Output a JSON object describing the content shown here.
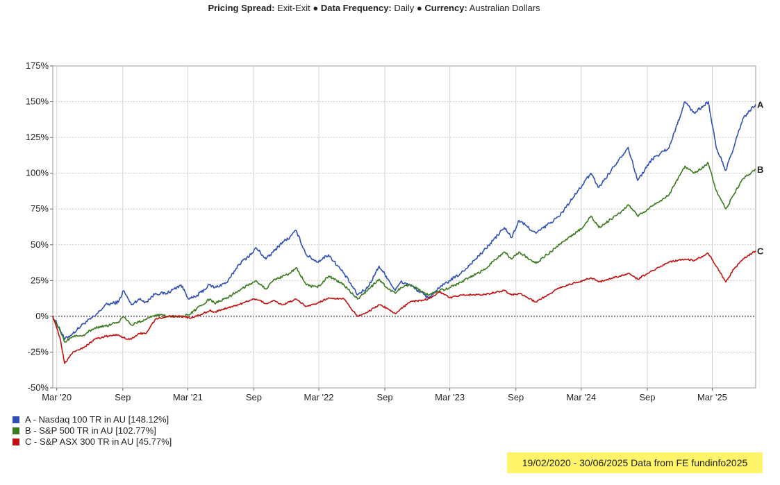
{
  "header": {
    "spread_label": "Pricing Spread:",
    "spread_value": " Exit-Exit",
    "sep1": " ● ",
    "freq_label": "Data Frequency:",
    "freq_value": " Daily",
    "sep2": " ● ",
    "currency_label": "Currency:",
    "currency_value": " Australian Dollars"
  },
  "footer": "19/02/2020 - 30/06/2025 Data from FE fundinfo2025",
  "colors": {
    "A": "#2f4fb5",
    "B": "#3a7a1e",
    "C": "#c01010"
  },
  "chart_data": {
    "type": "line",
    "xlim": [
      "2020-02-19",
      "2025-06-30"
    ],
    "ylim": [
      -50,
      175
    ],
    "y_ticks": [
      -50,
      -25,
      0,
      25,
      50,
      75,
      100,
      125,
      150,
      175
    ],
    "y_tick_labels": [
      "-50%",
      "-25%",
      "0%",
      "25%",
      "50%",
      "75%",
      "100%",
      "125%",
      "150%",
      "175%"
    ],
    "x_ticks": [
      {
        "date": "2020-03-01",
        "label": "Mar '20"
      },
      {
        "date": "2020-09-01",
        "label": "Sep"
      },
      {
        "date": "2021-03-01",
        "label": "Mar '21"
      },
      {
        "date": "2021-09-01",
        "label": "Sep"
      },
      {
        "date": "2022-03-01",
        "label": "Mar '22"
      },
      {
        "date": "2022-09-01",
        "label": "Sep"
      },
      {
        "date": "2023-03-01",
        "label": "Mar '23"
      },
      {
        "date": "2023-09-01",
        "label": "Sep"
      },
      {
        "date": "2024-03-01",
        "label": "Mar '24"
      },
      {
        "date": "2024-09-01",
        "label": "Sep"
      },
      {
        "date": "2025-03-01",
        "label": "Mar '25"
      }
    ],
    "grid": true,
    "series": [
      {
        "name": "A - Nasdaq 100 TR in AU [148.12%]",
        "end_label": "A",
        "points": [
          [
            "2020-02-19",
            0
          ],
          [
            "2020-03-10",
            -9
          ],
          [
            "2020-03-23",
            -16
          ],
          [
            "2020-04-15",
            -12
          ],
          [
            "2020-05-15",
            -5
          ],
          [
            "2020-06-15",
            0
          ],
          [
            "2020-07-15",
            8
          ],
          [
            "2020-08-20",
            10
          ],
          [
            "2020-09-03",
            18
          ],
          [
            "2020-09-25",
            8
          ],
          [
            "2020-10-15",
            12
          ],
          [
            "2020-11-05",
            10
          ],
          [
            "2020-12-01",
            16
          ],
          [
            "2021-01-01",
            16
          ],
          [
            "2021-02-10",
            22
          ],
          [
            "2021-03-05",
            12
          ],
          [
            "2021-03-25",
            14
          ],
          [
            "2021-05-01",
            22
          ],
          [
            "2021-05-15",
            20
          ],
          [
            "2021-06-20",
            24
          ],
          [
            "2021-07-20",
            36
          ],
          [
            "2021-08-31",
            45
          ],
          [
            "2021-09-07",
            48
          ],
          [
            "2021-10-05",
            40
          ],
          [
            "2021-10-25",
            45
          ],
          [
            "2021-11-20",
            52
          ],
          [
            "2021-12-10",
            55
          ],
          [
            "2021-12-28",
            60
          ],
          [
            "2022-01-25",
            43
          ],
          [
            "2022-02-25",
            38
          ],
          [
            "2022-03-28",
            43
          ],
          [
            "2022-05-10",
            30
          ],
          [
            "2022-06-17",
            15
          ],
          [
            "2022-07-15",
            20
          ],
          [
            "2022-08-16",
            35
          ],
          [
            "2022-09-05",
            28
          ],
          [
            "2022-09-30",
            18
          ],
          [
            "2022-10-15",
            24
          ],
          [
            "2022-11-10",
            22
          ],
          [
            "2022-12-30",
            13
          ],
          [
            "2023-02-01",
            20
          ],
          [
            "2023-03-01",
            25
          ],
          [
            "2023-04-01",
            30
          ],
          [
            "2023-06-01",
            45
          ],
          [
            "2023-07-31",
            62
          ],
          [
            "2023-08-20",
            55
          ],
          [
            "2023-09-10",
            67
          ],
          [
            "2023-10-27",
            58
          ],
          [
            "2023-12-31",
            70
          ],
          [
            "2024-03-05",
            92
          ],
          [
            "2024-03-28",
            100
          ],
          [
            "2024-04-19",
            90
          ],
          [
            "2024-06-15",
            110
          ],
          [
            "2024-07-10",
            118
          ],
          [
            "2024-08-05",
            95
          ],
          [
            "2024-09-15",
            110
          ],
          [
            "2024-11-01",
            118
          ],
          [
            "2024-12-15",
            150
          ],
          [
            "2025-01-10",
            142
          ],
          [
            "2025-02-18",
            150
          ],
          [
            "2025-03-12",
            118
          ],
          [
            "2025-04-08",
            102
          ],
          [
            "2025-04-30",
            118
          ],
          [
            "2025-05-25",
            138
          ],
          [
            "2025-06-30",
            148.12
          ]
        ]
      },
      {
        "name": "B - S&P 500 TR in AU [102.77%]",
        "end_label": "B",
        "points": [
          [
            "2020-02-19",
            0
          ],
          [
            "2020-03-10",
            -10
          ],
          [
            "2020-03-23",
            -18
          ],
          [
            "2020-04-15",
            -14
          ],
          [
            "2020-05-15",
            -13
          ],
          [
            "2020-06-15",
            -8
          ],
          [
            "2020-07-15",
            -7
          ],
          [
            "2020-08-20",
            -4
          ],
          [
            "2020-09-03",
            0
          ],
          [
            "2020-09-25",
            -6
          ],
          [
            "2020-10-15",
            -4
          ],
          [
            "2020-11-05",
            -2
          ],
          [
            "2020-12-01",
            1
          ],
          [
            "2021-01-01",
            0
          ],
          [
            "2021-02-10",
            0
          ],
          [
            "2021-03-05",
            1
          ],
          [
            "2021-03-25",
            5
          ],
          [
            "2021-05-01",
            12
          ],
          [
            "2021-05-15",
            9
          ],
          [
            "2021-06-20",
            13
          ],
          [
            "2021-07-20",
            18
          ],
          [
            "2021-08-31",
            24
          ],
          [
            "2021-09-07",
            25
          ],
          [
            "2021-10-05",
            19
          ],
          [
            "2021-10-25",
            25
          ],
          [
            "2021-11-20",
            28
          ],
          [
            "2021-12-10",
            30
          ],
          [
            "2021-12-28",
            34
          ],
          [
            "2022-01-25",
            22
          ],
          [
            "2022-02-25",
            20
          ],
          [
            "2022-03-28",
            28
          ],
          [
            "2022-05-10",
            22
          ],
          [
            "2022-06-17",
            12
          ],
          [
            "2022-07-15",
            18
          ],
          [
            "2022-08-16",
            26
          ],
          [
            "2022-09-05",
            20
          ],
          [
            "2022-09-30",
            16
          ],
          [
            "2022-10-15",
            20
          ],
          [
            "2022-11-10",
            22
          ],
          [
            "2022-12-30",
            15
          ],
          [
            "2023-02-01",
            18
          ],
          [
            "2023-03-01",
            20
          ],
          [
            "2023-04-01",
            24
          ],
          [
            "2023-06-01",
            32
          ],
          [
            "2023-07-31",
            45
          ],
          [
            "2023-08-20",
            40
          ],
          [
            "2023-09-10",
            45
          ],
          [
            "2023-10-27",
            37
          ],
          [
            "2023-12-31",
            50
          ],
          [
            "2024-03-05",
            62
          ],
          [
            "2024-03-28",
            70
          ],
          [
            "2024-04-19",
            62
          ],
          [
            "2024-06-15",
            72
          ],
          [
            "2024-07-10",
            78
          ],
          [
            "2024-08-05",
            70
          ],
          [
            "2024-09-15",
            77
          ],
          [
            "2024-11-01",
            85
          ],
          [
            "2024-12-15",
            105
          ],
          [
            "2025-01-10",
            100
          ],
          [
            "2025-02-18",
            107
          ],
          [
            "2025-03-12",
            88
          ],
          [
            "2025-04-08",
            75
          ],
          [
            "2025-04-30",
            85
          ],
          [
            "2025-05-25",
            96
          ],
          [
            "2025-06-30",
            102.77
          ]
        ]
      },
      {
        "name": "C - S&P ASX 300 TR in AU [45.77%]",
        "end_label": "C",
        "points": [
          [
            "2020-02-19",
            0
          ],
          [
            "2020-03-10",
            -15
          ],
          [
            "2020-03-23",
            -33
          ],
          [
            "2020-04-15",
            -25
          ],
          [
            "2020-05-15",
            -22
          ],
          [
            "2020-06-15",
            -16
          ],
          [
            "2020-07-15",
            -14
          ],
          [
            "2020-08-20",
            -13
          ],
          [
            "2020-09-03",
            -15
          ],
          [
            "2020-09-25",
            -16
          ],
          [
            "2020-10-15",
            -12
          ],
          [
            "2020-11-05",
            -12
          ],
          [
            "2020-12-01",
            -2
          ],
          [
            "2021-01-01",
            0
          ],
          [
            "2021-02-10",
            0
          ],
          [
            "2021-03-05",
            -1
          ],
          [
            "2021-03-25",
            0
          ],
          [
            "2021-05-01",
            4
          ],
          [
            "2021-05-15",
            3
          ],
          [
            "2021-06-20",
            6
          ],
          [
            "2021-07-20",
            8
          ],
          [
            "2021-08-31",
            12
          ],
          [
            "2021-09-07",
            12
          ],
          [
            "2021-10-05",
            9
          ],
          [
            "2021-10-25",
            11
          ],
          [
            "2021-11-20",
            8
          ],
          [
            "2021-12-10",
            10
          ],
          [
            "2021-12-28",
            12
          ],
          [
            "2022-01-25",
            7
          ],
          [
            "2022-02-25",
            9
          ],
          [
            "2022-03-28",
            13
          ],
          [
            "2022-05-10",
            12
          ],
          [
            "2022-06-17",
            0
          ],
          [
            "2022-07-15",
            3
          ],
          [
            "2022-08-16",
            8
          ],
          [
            "2022-09-05",
            6
          ],
          [
            "2022-09-30",
            2
          ],
          [
            "2022-10-15",
            5
          ],
          [
            "2022-11-10",
            10
          ],
          [
            "2022-12-30",
            12
          ],
          [
            "2023-02-01",
            17
          ],
          [
            "2023-03-01",
            13
          ],
          [
            "2023-04-01",
            15
          ],
          [
            "2023-06-01",
            15
          ],
          [
            "2023-07-31",
            18
          ],
          [
            "2023-08-20",
            15
          ],
          [
            "2023-09-10",
            16
          ],
          [
            "2023-10-27",
            10
          ],
          [
            "2023-12-31",
            20
          ],
          [
            "2024-03-05",
            25
          ],
          [
            "2024-03-28",
            27
          ],
          [
            "2024-04-19",
            24
          ],
          [
            "2024-06-15",
            28
          ],
          [
            "2024-07-10",
            30
          ],
          [
            "2024-08-05",
            26
          ],
          [
            "2024-09-15",
            32
          ],
          [
            "2024-11-01",
            38
          ],
          [
            "2024-12-15",
            40
          ],
          [
            "2025-01-10",
            39
          ],
          [
            "2025-02-18",
            44
          ],
          [
            "2025-03-12",
            35
          ],
          [
            "2025-04-08",
            24
          ],
          [
            "2025-04-30",
            33
          ],
          [
            "2025-05-25",
            40
          ],
          [
            "2025-06-30",
            45.77
          ]
        ]
      }
    ]
  }
}
